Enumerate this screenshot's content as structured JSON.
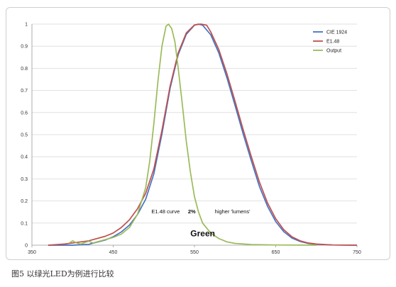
{
  "chart_data": {
    "type": "line",
    "x_ticks": [
      350,
      450,
      550,
      650,
      750
    ],
    "y_ticks": [
      0,
      0.1,
      0.2,
      0.3,
      0.4,
      0.5,
      0.6,
      0.7,
      0.8,
      0.9,
      1
    ],
    "xlim": [
      350,
      750
    ],
    "ylim": [
      0,
      1
    ],
    "grid": "horizontal",
    "legend_position": "top-right",
    "series": [
      {
        "name": "CIE 1924",
        "color": "#4472c4",
        "points": [
          [
            370,
            0
          ],
          [
            400,
            0
          ],
          [
            420,
            0.004
          ],
          [
            440,
            0.023
          ],
          [
            450,
            0.038
          ],
          [
            460,
            0.06
          ],
          [
            470,
            0.091
          ],
          [
            480,
            0.139
          ],
          [
            490,
            0.208
          ],
          [
            500,
            0.323
          ],
          [
            510,
            0.503
          ],
          [
            520,
            0.71
          ],
          [
            530,
            0.862
          ],
          [
            540,
            0.954
          ],
          [
            550,
            0.995
          ],
          [
            555,
            1
          ],
          [
            560,
            0.995
          ],
          [
            570,
            0.952
          ],
          [
            580,
            0.87
          ],
          [
            590,
            0.757
          ],
          [
            600,
            0.631
          ],
          [
            610,
            0.503
          ],
          [
            620,
            0.381
          ],
          [
            630,
            0.265
          ],
          [
            640,
            0.175
          ],
          [
            650,
            0.107
          ],
          [
            660,
            0.061
          ],
          [
            670,
            0.032
          ],
          [
            680,
            0.017
          ],
          [
            690,
            0.008
          ],
          [
            700,
            0.004
          ],
          [
            720,
            0.001
          ],
          [
            750,
            0
          ]
        ]
      },
      {
        "name": "E1.48",
        "color": "#c0504d",
        "points": [
          [
            370,
            0
          ],
          [
            390,
            0.005
          ],
          [
            400,
            0.01
          ],
          [
            420,
            0.02
          ],
          [
            440,
            0.04
          ],
          [
            450,
            0.055
          ],
          [
            460,
            0.08
          ],
          [
            470,
            0.115
          ],
          [
            480,
            0.165
          ],
          [
            490,
            0.235
          ],
          [
            500,
            0.345
          ],
          [
            510,
            0.52
          ],
          [
            520,
            0.72
          ],
          [
            530,
            0.87
          ],
          [
            540,
            0.96
          ],
          [
            550,
            0.996
          ],
          [
            558,
            1
          ],
          [
            565,
            0.995
          ],
          [
            570,
            0.965
          ],
          [
            580,
            0.885
          ],
          [
            590,
            0.775
          ],
          [
            600,
            0.65
          ],
          [
            610,
            0.522
          ],
          [
            620,
            0.4
          ],
          [
            630,
            0.285
          ],
          [
            640,
            0.19
          ],
          [
            650,
            0.12
          ],
          [
            660,
            0.07
          ],
          [
            670,
            0.038
          ],
          [
            680,
            0.02
          ],
          [
            690,
            0.01
          ],
          [
            700,
            0.005
          ],
          [
            720,
            0.001
          ],
          [
            750,
            0
          ]
        ]
      },
      {
        "name": "Output",
        "color": "#9bbb59",
        "points": [
          [
            396,
            0.01
          ],
          [
            400,
            0.02
          ],
          [
            405,
            0.01
          ],
          [
            410,
            0.005
          ],
          [
            415,
            0.012
          ],
          [
            420,
            0.018
          ],
          [
            425,
            0.01
          ],
          [
            430,
            0.015
          ],
          [
            440,
            0.025
          ],
          [
            450,
            0.035
          ],
          [
            460,
            0.05
          ],
          [
            470,
            0.08
          ],
          [
            480,
            0.14
          ],
          [
            490,
            0.26
          ],
          [
            495,
            0.38
          ],
          [
            500,
            0.55
          ],
          [
            505,
            0.74
          ],
          [
            510,
            0.9
          ],
          [
            515,
            0.99
          ],
          [
            518,
            1
          ],
          [
            522,
            0.98
          ],
          [
            526,
            0.92
          ],
          [
            530,
            0.8
          ],
          [
            535,
            0.64
          ],
          [
            540,
            0.47
          ],
          [
            545,
            0.33
          ],
          [
            550,
            0.22
          ],
          [
            555,
            0.15
          ],
          [
            560,
            0.1
          ],
          [
            570,
            0.055
          ],
          [
            580,
            0.03
          ],
          [
            590,
            0.015
          ],
          [
            600,
            0.008
          ],
          [
            620,
            0.003
          ],
          [
            650,
            0.001
          ],
          [
            700,
            0
          ]
        ]
      }
    ],
    "annotations": [
      {
        "text": "E1.48 curve",
        "x": 497,
        "y": 0.145
      },
      {
        "text": "2%",
        "x": 542,
        "y": 0.145
      },
      {
        "text": "higher 'lumens'",
        "x": 575,
        "y": 0.145
      },
      {
        "text": "Green",
        "x": 545,
        "y": 0.04
      }
    ]
  },
  "caption": "图5  以绿光LED为例进行比较"
}
